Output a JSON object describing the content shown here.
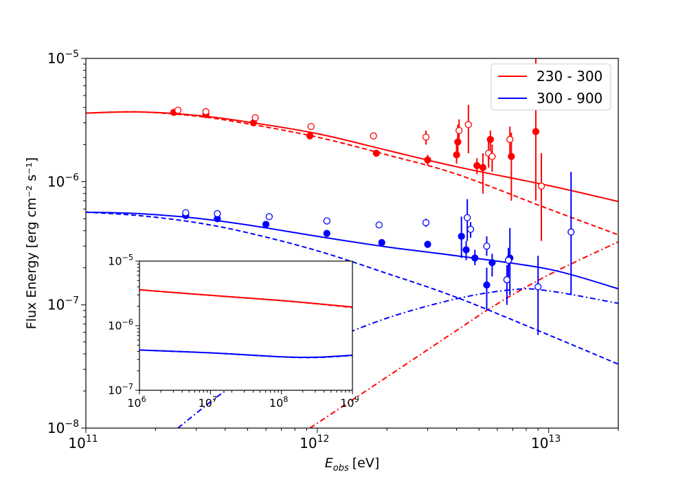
{
  "chart_data": [
    {
      "type": "scatter",
      "role": "main",
      "xlabel": "E",
      "xlabel_sub": "obs",
      "xlabel_unit": "[eV]",
      "ylabel": "Flux Energy [erg cm⁻² s⁻¹]",
      "xscale": "log",
      "yscale": "log",
      "xlim": [
        100000000000.0,
        20000000000000.0
      ],
      "ylim": [
        1e-08,
        1e-05
      ],
      "xticks": [
        {
          "value": 100000000000.0,
          "base": "10",
          "exp": "11"
        },
        {
          "value": 1000000000000.0,
          "base": "10",
          "exp": "12"
        },
        {
          "value": 10000000000000.0,
          "base": "10",
          "exp": "13"
        }
      ],
      "yticks": [
        {
          "value": 1e-08,
          "base": "10",
          "exp": "−8"
        },
        {
          "value": 1e-07,
          "base": "10",
          "exp": "−7"
        },
        {
          "value": 1e-06,
          "base": "10",
          "exp": "−6"
        },
        {
          "value": 1e-05,
          "base": "10",
          "exp": "−5"
        }
      ],
      "grid": false,
      "legend_position": "top-right",
      "legend": [
        {
          "label": "230 - 300",
          "color": "#ff0000"
        },
        {
          "label": "300 - 900",
          "color": "#0000ff"
        }
      ],
      "series": [
        {
          "name": "230 - 300",
          "color": "#ff0000",
          "model_total": {
            "style": "solid",
            "x": [
              100000000000.0,
              170000000000.0,
              300000000000.0,
              500000000000.0,
              1000000000000.0,
              2000000000000.0,
              4000000000000.0,
              10000000000000.0,
              20000000000000.0
            ],
            "y": [
              3.6e-06,
              3.68e-06,
              3.45e-06,
              3.05e-06,
              2.45e-06,
              1.8e-06,
              1.32e-06,
              9.3e-07,
              6.9e-07
            ]
          },
          "model_component": {
            "style": "dashed",
            "x": [
              100000000000.0,
              170000000000.0,
              300000000000.0,
              500000000000.0,
              1000000000000.0,
              2000000000000.0,
              4000000000000.0,
              10000000000000.0,
              20000000000000.0
            ],
            "y": [
              3.6e-06,
              3.68e-06,
              3.4e-06,
              2.95e-06,
              2.3e-06,
              1.65e-06,
              1.15e-06,
              6e-07,
              3.7e-07
            ]
          },
          "model_secondary": {
            "style": "dashdot",
            "x": [
              930000000000.0,
              2000000000000.0,
              4000000000000.0,
              6000000000000.0,
              10000000000000.0,
              20000000000000.0
            ],
            "y": [
              1e-08,
              2.6e-08,
              6.2e-08,
              1.02e-07,
              1.75e-07,
              3.25e-07
            ]
          },
          "points_filled": [
            {
              "x": 240000000000.0,
              "y": 3.65e-06,
              "lo": 3.65e-06,
              "hi": 3.65e-06
            },
            {
              "x": 330000000000.0,
              "y": 3.5e-06,
              "lo": 3.5e-06,
              "hi": 3.5e-06
            },
            {
              "x": 530000000000.0,
              "y": 3e-06,
              "lo": 3e-06,
              "hi": 3e-06
            },
            {
              "x": 930000000000.0,
              "y": 2.35e-06,
              "lo": 2.35e-06,
              "hi": 2.35e-06
            },
            {
              "x": 1800000000000.0,
              "y": 1.7e-06,
              "lo": 1.6e-06,
              "hi": 1.8e-06
            },
            {
              "x": 3000000000000.0,
              "y": 1.5e-06,
              "lo": 1.35e-06,
              "hi": 1.65e-06
            },
            {
              "x": 4000000000000.0,
              "y": 1.65e-06,
              "lo": 1.4e-06,
              "hi": 2.2e-06
            },
            {
              "x": 4050000000000.0,
              "y": 2.1e-06,
              "lo": 1.6e-06,
              "hi": 2.9e-06
            },
            {
              "x": 4900000000000.0,
              "y": 1.35e-06,
              "lo": 1.15e-06,
              "hi": 1.55e-06
            },
            {
              "x": 5200000000000.0,
              "y": 1.3e-06,
              "lo": 8e-07,
              "hi": 1.7e-06
            },
            {
              "x": 5600000000000.0,
              "y": 2.2e-06,
              "lo": 1.8e-06,
              "hi": 2.6e-06
            },
            {
              "x": 6900000000000.0,
              "y": 1.6e-06,
              "lo": 7e-07,
              "hi": 2.5e-06
            },
            {
              "x": 8800000000000.0,
              "y": 2.55e-06,
              "lo": 7e-07,
              "hi": 1e-05
            }
          ],
          "points_open": [
            {
              "x": 250000000000.0,
              "y": 3.8e-06,
              "lo": 3.8e-06,
              "hi": 3.8e-06
            },
            {
              "x": 330000000000.0,
              "y": 3.7e-06,
              "lo": 3.7e-06,
              "hi": 3.7e-06
            },
            {
              "x": 540000000000.0,
              "y": 3.3e-06,
              "lo": 3.3e-06,
              "hi": 3.3e-06
            },
            {
              "x": 940000000000.0,
              "y": 2.8e-06,
              "lo": 2.8e-06,
              "hi": 2.8e-06
            },
            {
              "x": 1750000000000.0,
              "y": 2.35e-06,
              "lo": 2.2e-06,
              "hi": 2.5e-06
            },
            {
              "x": 2950000000000.0,
              "y": 2.3e-06,
              "lo": 2e-06,
              "hi": 2.6e-06
            },
            {
              "x": 4100000000000.0,
              "y": 2.6e-06,
              "lo": 2e-06,
              "hi": 3.2e-06
            },
            {
              "x": 4500000000000.0,
              "y": 2.9e-06,
              "lo": 1.7e-06,
              "hi": 4.2e-06
            },
            {
              "x": 5500000000000.0,
              "y": 1.7e-06,
              "lo": 1.3e-06,
              "hi": 2.1e-06
            },
            {
              "x": 5700000000000.0,
              "y": 1.6e-06,
              "lo": 1.2e-06,
              "hi": 2e-06
            },
            {
              "x": 6800000000000.0,
              "y": 2.2e-06,
              "lo": 1.6e-06,
              "hi": 2.8e-06
            },
            {
              "x": 9300000000000.0,
              "y": 9.2e-07,
              "lo": 3.3e-07,
              "hi": 1.7e-06
            }
          ]
        },
        {
          "name": "300 - 900",
          "color": "#0000ff",
          "model_total": {
            "style": "solid",
            "x": [
              100000000000.0,
              170000000000.0,
              300000000000.0,
              500000000000.0,
              1000000000000.0,
              2000000000000.0,
              4000000000000.0,
              10000000000000.0,
              20000000000000.0
            ],
            "y": [
              5.65e-07,
              5.5e-07,
              5.05e-07,
              4.45e-07,
              3.6e-07,
              2.95e-07,
              2.5e-07,
              1.95e-07,
              1.35e-07
            ]
          },
          "model_component": {
            "style": "dashed",
            "x": [
              100000000000.0,
              170000000000.0,
              300000000000.0,
              500000000000.0,
              1000000000000.0,
              2000000000000.0,
              4000000000000.0,
              10000000000000.0,
              20000000000000.0
            ],
            "y": [
              5.65e-07,
              5.3e-07,
              4.65e-07,
              3.85e-07,
              2.75e-07,
              1.8e-07,
              1.15e-07,
              5.7e-08,
              3.3e-08
            ]
          },
          "model_secondary": {
            "style": "dashdot",
            "x": [
              250000000000.0,
              400000000000.0,
              600000000000.0,
              1000000000000.0,
              2000000000000.0,
              4000000000000.0,
              7000000000000.0,
              10000000000000.0,
              20000000000000.0
            ],
            "y": [
              1e-08,
              2e-08,
              3.1e-08,
              4.7e-08,
              7.8e-08,
              1.12e-07,
              1.33e-07,
              1.3e-07,
              1.03e-07
            ]
          },
          "points_filled": [
            {
              "x": 270000000000.0,
              "y": 5.3e-07,
              "lo": 5.3e-07,
              "hi": 5.3e-07
            },
            {
              "x": 370000000000.0,
              "y": 5e-07,
              "lo": 5e-07,
              "hi": 5e-07
            },
            {
              "x": 600000000000.0,
              "y": 4.5e-07,
              "lo": 4.5e-07,
              "hi": 4.5e-07
            },
            {
              "x": 1100000000000.0,
              "y": 3.8e-07,
              "lo": 3.8e-07,
              "hi": 3.8e-07
            },
            {
              "x": 1900000000000.0,
              "y": 3.2e-07,
              "lo": 3.2e-07,
              "hi": 3.2e-07
            },
            {
              "x": 3000000000000.0,
              "y": 3.1e-07,
              "lo": 2.9e-07,
              "hi": 3.3e-07
            },
            {
              "x": 4200000000000.0,
              "y": 3.6e-07,
              "lo": 2.4e-07,
              "hi": 5.2e-07
            },
            {
              "x": 4400000000000.0,
              "y": 2.8e-07,
              "lo": 2.3e-07,
              "hi": 3.3e-07
            },
            {
              "x": 4800000000000.0,
              "y": 2.4e-07,
              "lo": 2.1e-07,
              "hi": 2.8e-07
            },
            {
              "x": 5400000000000.0,
              "y": 1.45e-07,
              "lo": 9e-08,
              "hi": 2e-07
            },
            {
              "x": 5700000000000.0,
              "y": 2.2e-07,
              "lo": 1.7e-07,
              "hi": 2.6e-07
            },
            {
              "x": 6800000000000.0,
              "y": 2.4e-07,
              "lo": 1.2e-07,
              "hi": 4.2e-07
            }
          ],
          "points_open": [
            {
              "x": 270000000000.0,
              "y": 5.6e-07,
              "lo": 5.6e-07,
              "hi": 5.6e-07
            },
            {
              "x": 370000000000.0,
              "y": 5.5e-07,
              "lo": 5.5e-07,
              "hi": 5.5e-07
            },
            {
              "x": 620000000000.0,
              "y": 5.2e-07,
              "lo": 5.2e-07,
              "hi": 5.2e-07
            },
            {
              "x": 1100000000000.0,
              "y": 4.8e-07,
              "lo": 4.8e-07,
              "hi": 4.8e-07
            },
            {
              "x": 1850000000000.0,
              "y": 4.45e-07,
              "lo": 4.45e-07,
              "hi": 4.45e-07
            },
            {
              "x": 2950000000000.0,
              "y": 4.65e-07,
              "lo": 4.3e-07,
              "hi": 5e-07
            },
            {
              "x": 4450000000000.0,
              "y": 5.1e-07,
              "lo": 3.3e-07,
              "hi": 7.2e-07
            },
            {
              "x": 4600000000000.0,
              "y": 4.1e-07,
              "lo": 3.5e-07,
              "hi": 4.7e-07
            },
            {
              "x": 5400000000000.0,
              "y": 3e-07,
              "lo": 2.5e-07,
              "hi": 3.6e-07
            },
            {
              "x": 6600000000000.0,
              "y": 1.6e-07,
              "lo": 1e-07,
              "hi": 2.1e-07
            },
            {
              "x": 6700000000000.0,
              "y": 2.3e-07,
              "lo": 1.7e-07,
              "hi": 2.9e-07
            },
            {
              "x": 9000000000000.0,
              "y": 1.4e-07,
              "lo": 5.7e-08,
              "hi": 2.5e-07
            },
            {
              "x": 12500000000000.0,
              "y": 3.9e-07,
              "lo": 1.2e-07,
              "hi": 1.2e-06
            }
          ]
        }
      ]
    },
    {
      "type": "line",
      "role": "inset",
      "xscale": "log",
      "yscale": "log",
      "xlim": [
        1000000.0,
        1000000000.0
      ],
      "ylim": [
        1e-07,
        1e-05
      ],
      "xticks": [
        {
          "value": 1000000.0,
          "base": "10",
          "exp": "6"
        },
        {
          "value": 10000000.0,
          "base": "10",
          "exp": "7"
        },
        {
          "value": 100000000.0,
          "base": "10",
          "exp": "8"
        },
        {
          "value": 1000000000.0,
          "base": "10",
          "exp": "9"
        }
      ],
      "yticks": [
        {
          "value": 1e-07,
          "base": "10",
          "exp": "−7"
        },
        {
          "value": 1e-06,
          "base": "10",
          "exp": "−6"
        },
        {
          "value": 1e-05,
          "base": "10",
          "exp": "−5"
        }
      ],
      "grid": false,
      "series": [
        {
          "color": "#ff0000",
          "style": "solid",
          "x": [
            1000000.0,
            10000000.0,
            100000000.0,
            1000000000.0
          ],
          "y": [
            3.6e-06,
            2.95e-06,
            2.45e-06,
            1.95e-06
          ]
        },
        {
          "color": "#ff0000",
          "style": "dashed",
          "x": [
            1000000.0,
            10000000.0,
            100000000.0,
            1000000000.0
          ],
          "y": [
            3.6e-06,
            2.95e-06,
            2.45e-06,
            1.92e-06
          ]
        },
        {
          "color": "#0000ff",
          "style": "solid",
          "x": [
            1000000.0,
            10000000.0,
            100000000.0,
            300000000.0,
            1000000000.0
          ],
          "y": [
            4.2e-07,
            3.8e-07,
            3.3e-07,
            3.25e-07,
            3.5e-07
          ]
        },
        {
          "color": "#0000ff",
          "style": "dashed",
          "x": [
            1000000.0,
            10000000.0,
            100000000.0,
            300000000.0,
            1000000000.0
          ],
          "y": [
            4.2e-07,
            3.8e-07,
            3.3e-07,
            3.22e-07,
            3.45e-07
          ]
        }
      ]
    }
  ]
}
